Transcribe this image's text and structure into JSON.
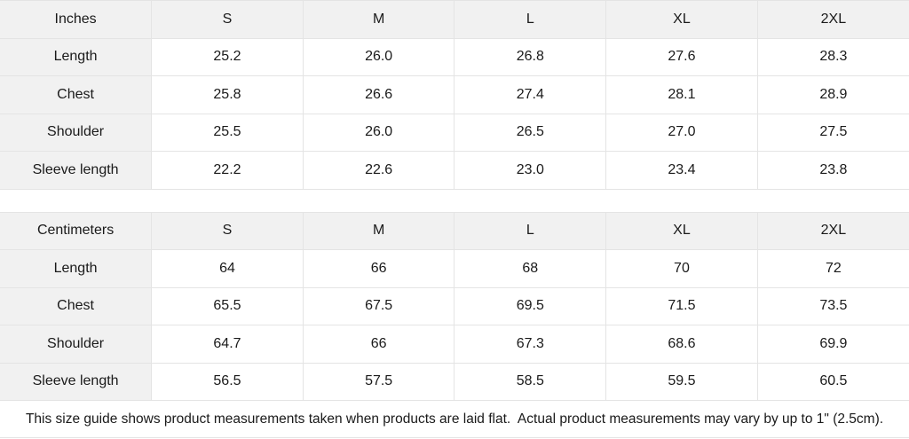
{
  "colors": {
    "header_bg": "#f1f1f1",
    "cell_bg": "#ffffff",
    "border": "#e4e4e4",
    "text": "#1a1a1a"
  },
  "tables": [
    {
      "unit_label": "Inches",
      "sizes": [
        "S",
        "M",
        "L",
        "XL",
        "2XL"
      ],
      "rows": [
        {
          "label": "Length",
          "values": [
            "25.2",
            "26.0",
            "26.8",
            "27.6",
            "28.3"
          ]
        },
        {
          "label": "Chest",
          "values": [
            "25.8",
            "26.6",
            "27.4",
            "28.1",
            "28.9"
          ]
        },
        {
          "label": "Shoulder",
          "values": [
            "25.5",
            "26.0",
            "26.5",
            "27.0",
            "27.5"
          ]
        },
        {
          "label": "Sleeve length",
          "values": [
            "22.2",
            "22.6",
            "23.0",
            "23.4",
            "23.8"
          ]
        }
      ]
    },
    {
      "unit_label": "Centimeters",
      "sizes": [
        "S",
        "M",
        "L",
        "XL",
        "2XL"
      ],
      "rows": [
        {
          "label": "Length",
          "values": [
            "64",
            "66",
            "68",
            "70",
            "72"
          ]
        },
        {
          "label": "Chest",
          "values": [
            "65.5",
            "67.5",
            "69.5",
            "71.5",
            "73.5"
          ]
        },
        {
          "label": "Shoulder",
          "values": [
            "64.7",
            "66",
            "67.3",
            "68.6",
            "69.9"
          ]
        },
        {
          "label": "Sleeve length",
          "values": [
            "56.5",
            "57.5",
            "58.5",
            "59.5",
            "60.5"
          ]
        }
      ]
    }
  ],
  "footer": {
    "note": "This size guide shows product measurements taken when products are laid flat.  Actual product measurements may vary by up to 1\" (2.5cm)."
  }
}
